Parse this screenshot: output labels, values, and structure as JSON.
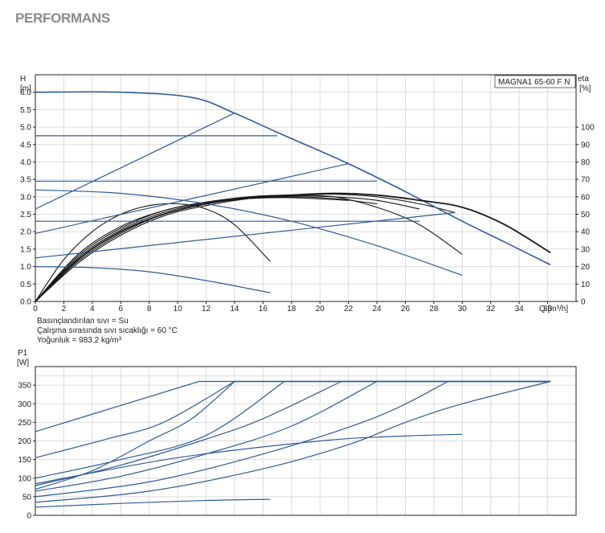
{
  "page": {
    "title": "PERFORMANS"
  },
  "colors": {
    "grid": "#dcdcdc",
    "axis": "#222222",
    "blue": "#2f5b96",
    "black": "#1a1a1a"
  },
  "fluid_info": [
    "Basınçlandırılan sıvı = Su",
    "Çalışma sırasında sıvı sıcaklığı = 60 °C",
    "Yoğunluk = 983.2 kg/m³"
  ],
  "chart_data": [
    {
      "type": "line",
      "title": "",
      "model_label": "MAGNA1 65-60 F N",
      "ylabel": [
        "H",
        "[m]"
      ],
      "y2label": [
        "eta",
        "[%]"
      ],
      "xlabel": "Q [m³/h]",
      "xlim": [
        0,
        38
      ],
      "ylim": [
        0,
        6.5
      ],
      "y2lim": [
        0,
        100
      ],
      "x_ticks": [
        "0",
        "2",
        "4",
        "6",
        "8",
        "10",
        "12",
        "14",
        "16",
        "18",
        "20",
        "22",
        "24",
        "26",
        "28",
        "30",
        "32",
        "34",
        "36"
      ],
      "y_ticks": [
        "0.0",
        "0.5",
        "1.0",
        "1.5",
        "2.0",
        "2.5",
        "3.0",
        "3.5",
        "4.0",
        "4.5",
        "5.0",
        "5.5",
        "6.0"
      ],
      "y2_ticks": [
        "0",
        "10",
        "20",
        "30",
        "40",
        "50",
        "60",
        "70",
        "80",
        "90",
        "100"
      ],
      "head_series": [
        {
          "style": "head-max",
          "x": [
            0,
            6,
            11,
            14,
            17,
            22,
            26,
            30,
            33,
            36.2
          ],
          "y": [
            6.0,
            6.0,
            5.85,
            5.4,
            4.85,
            3.95,
            3.15,
            2.3,
            1.7,
            1.05
          ]
        },
        {
          "style": "const",
          "x": [
            0,
            17
          ],
          "y": [
            4.75,
            4.75
          ]
        },
        {
          "style": "const",
          "x": [
            0,
            24
          ],
          "y": [
            3.45,
            3.45
          ]
        },
        {
          "style": "const",
          "x": [
            0,
            27
          ],
          "y": [
            2.3,
            2.3
          ]
        },
        {
          "style": "prop",
          "x": [
            0,
            14
          ],
          "y": [
            2.65,
            5.4
          ]
        },
        {
          "style": "prop",
          "x": [
            0,
            22
          ],
          "y": [
            1.95,
            3.95
          ]
        },
        {
          "style": "prop",
          "x": [
            0,
            29.5
          ],
          "y": [
            1.25,
            2.55
          ]
        },
        {
          "style": "fixed",
          "x": [
            0,
            4,
            8,
            12,
            16.5
          ],
          "y": [
            1.0,
            0.97,
            0.85,
            0.6,
            0.25
          ]
        },
        {
          "style": "fixed",
          "x": [
            0,
            6,
            12,
            18,
            24,
            30
          ],
          "y": [
            3.2,
            3.1,
            2.8,
            2.3,
            1.6,
            0.75
          ]
        }
      ],
      "efficiency_series": [
        {
          "x": [
            0,
            2,
            4,
            6,
            8,
            10,
            12,
            14,
            16.5
          ],
          "y": [
            0,
            24,
            40,
            50,
            55,
            56,
            53,
            44,
            23
          ]
        },
        {
          "x": [
            0,
            3,
            6,
            9,
            12,
            15,
            18,
            21,
            24,
            27,
            30
          ],
          "y": [
            0,
            26,
            42,
            52,
            57,
            60,
            61,
            60,
            54,
            44,
            27
          ]
        },
        {
          "x": [
            0,
            3,
            6,
            9,
            12,
            15,
            18,
            21,
            24,
            27,
            30,
            33,
            36.2
          ],
          "y": [
            0,
            24,
            40,
            50,
            56,
            59.5,
            61,
            62,
            61,
            58,
            54,
            44,
            28
          ]
        },
        {
          "x": [
            0,
            3,
            6,
            9,
            12,
            15,
            18,
            21,
            24,
            27,
            29.5
          ],
          "y": [
            0,
            22,
            38,
            49,
            55,
            59,
            61,
            61.5,
            60,
            56,
            51
          ]
        },
        {
          "x": [
            0,
            3,
            6,
            9,
            12,
            15,
            18,
            21,
            24,
            27
          ],
          "y": [
            0,
            23,
            39,
            50,
            56,
            59,
            60.5,
            60,
            58,
            53
          ]
        },
        {
          "x": [
            0,
            3,
            6,
            9,
            12,
            15,
            18,
            21,
            24
          ],
          "y": [
            0,
            25,
            41,
            51,
            56.5,
            59,
            60,
            59,
            56
          ]
        },
        {
          "x": [
            0,
            3,
            6,
            9,
            12,
            15,
            18,
            22
          ],
          "y": [
            0,
            27,
            43,
            52,
            57,
            59,
            59.5,
            58
          ]
        }
      ]
    },
    {
      "type": "line",
      "title": "",
      "ylabel": [
        "P1",
        "[W]"
      ],
      "xlim": [
        0,
        38
      ],
      "ylim": [
        0,
        400
      ],
      "y_ticks": [
        "0",
        "50",
        "100",
        "150",
        "200",
        "250",
        "300",
        "350"
      ],
      "series": [
        {
          "x": [
            0,
            11.5,
            36.2
          ],
          "y": [
            225,
            360,
            360
          ]
        },
        {
          "x": [
            0,
            5,
            9,
            14,
            36.2
          ],
          "y": [
            155,
            205,
            250,
            360,
            360
          ]
        },
        {
          "x": [
            0,
            4,
            8,
            11,
            14,
            36.2
          ],
          "y": [
            70,
            120,
            200,
            260,
            360,
            360
          ]
        },
        {
          "x": [
            0,
            6,
            12,
            17.5,
            36.2
          ],
          "y": [
            100,
            150,
            215,
            360,
            360
          ]
        },
        {
          "x": [
            0,
            6,
            12,
            16,
            21.5,
            36.2
          ],
          "y": [
            80,
            135,
            205,
            260,
            360,
            360
          ]
        },
        {
          "x": [
            0,
            6,
            12,
            18,
            24,
            36.2
          ],
          "y": [
            65,
            105,
            165,
            240,
            360,
            360
          ]
        },
        {
          "x": [
            0,
            8,
            16,
            24,
            29,
            36.2
          ],
          "y": [
            50,
            90,
            165,
            265,
            360,
            360
          ]
        },
        {
          "x": [
            0,
            8,
            16,
            22,
            26,
            30,
            36.2
          ],
          "y": [
            35,
            65,
            125,
            190,
            250,
            300,
            360
          ]
        },
        {
          "x": [
            0,
            10,
            20,
            25,
            30
          ],
          "y": [
            85,
            155,
            200,
            212,
            218
          ]
        },
        {
          "x": [
            0,
            6,
            12,
            16.5
          ],
          "y": [
            22,
            32,
            40,
            43
          ]
        }
      ]
    }
  ]
}
